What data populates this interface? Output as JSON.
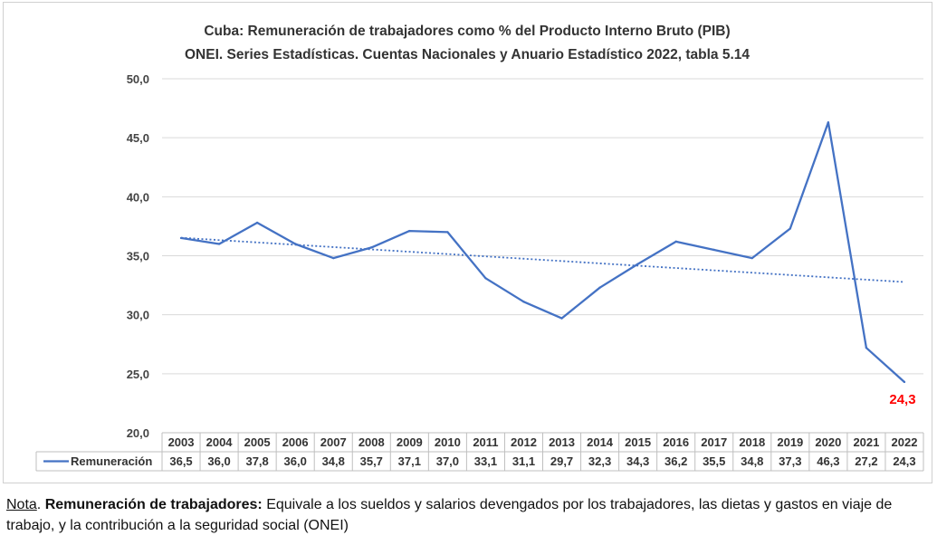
{
  "chart_data": {
    "type": "line",
    "title": "Cuba: Remuneración de trabajadores como % del Producto Interno Bruto (PIB)",
    "subtitle": "ONEI. Series Estadísticas. Cuentas Nacionales y Anuario Estadístico 2022, tabla 5.14",
    "categories": [
      "2003",
      "2004",
      "2005",
      "2006",
      "2007",
      "2008",
      "2009",
      "2010",
      "2011",
      "2012",
      "2013",
      "2014",
      "2015",
      "2016",
      "2017",
      "2018",
      "2019",
      "2020",
      "2021",
      "2022"
    ],
    "series": [
      {
        "name": "Remuneración",
        "values": [
          36.5,
          36.0,
          37.8,
          36.0,
          34.8,
          35.7,
          37.1,
          37.0,
          33.1,
          31.1,
          29.7,
          32.3,
          34.3,
          36.2,
          35.5,
          34.8,
          37.3,
          46.3,
          27.2,
          24.3
        ],
        "value_labels": [
          "36,5",
          "36,0",
          "37,8",
          "36,0",
          "34,8",
          "35,7",
          "37,1",
          "37,0",
          "33,1",
          "31,1",
          "29,7",
          "32,3",
          "34,3",
          "36,2",
          "35,5",
          "34,8",
          "37,3",
          "46,3",
          "27,2",
          "24,3"
        ],
        "color": "#4472C4"
      }
    ],
    "trendline": {
      "type": "linear",
      "style": "dotted",
      "color": "#4472C4"
    },
    "ylim": [
      20,
      50
    ],
    "yticks": [
      20,
      25,
      30,
      35,
      40,
      45,
      50
    ],
    "ytick_labels": [
      "20,0",
      "25,0",
      "30,0",
      "35,0",
      "40,0",
      "45,0",
      "50,0"
    ],
    "grid": true,
    "data_table": true,
    "highlight_label": {
      "text": "24,3",
      "color": "#FF0000"
    }
  },
  "note": {
    "prefix": "Nota",
    "sep": ". ",
    "term": "Remuneración de trabajadores:",
    "text": " Equivale a los sueldos y salarios devengados por los trabajadores, las dietas y gastos en viaje de trabajo, y la contribución a la seguridad social (ONEI)"
  }
}
